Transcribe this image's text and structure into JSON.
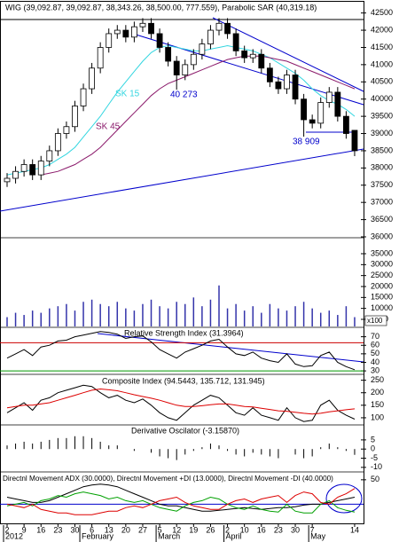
{
  "chart_data": {
    "type": "candlestick",
    "title": "WIG (39,092.87, 39,092.87, 38,343.26, 38,500.00, 777.559), Parabolic SAR (40,319.18)",
    "categories": [
      "2",
      null,
      "9",
      null,
      "16",
      null,
      "23",
      null,
      "30",
      null,
      "6",
      null,
      "13",
      null,
      "20",
      null,
      "27",
      null,
      "5",
      null,
      "12",
      null,
      "19",
      null,
      "26",
      null,
      "2",
      null,
      "10",
      null,
      "16",
      null,
      "23",
      null,
      "30",
      null,
      "7",
      null,
      null,
      null,
      null,
      "14"
    ],
    "months": [
      "2012",
      "February",
      "March",
      "April",
      "May"
    ],
    "open": [
      37600,
      37700,
      37900,
      38100,
      37800,
      38200,
      38500,
      39000,
      39200,
      39800,
      40300,
      40900,
      41500,
      41900,
      42000,
      41800,
      42100,
      42200,
      41900,
      41500,
      41100,
      40700,
      41000,
      41300,
      41600,
      42000,
      42200,
      41900,
      41400,
      41200,
      41300,
      40900,
      40500,
      40300,
      40700,
      40000,
      39400,
      39300,
      39900,
      40200,
      39500,
      39092.87
    ],
    "high": [
      37850,
      38050,
      38250,
      38250,
      38350,
      38650,
      39150,
      39350,
      39950,
      40450,
      41050,
      41650,
      42050,
      42150,
      42150,
      42250,
      42350,
      42350,
      42050,
      41650,
      41250,
      41150,
      41450,
      41750,
      42150,
      42350,
      42350,
      42050,
      41550,
      41450,
      41450,
      41050,
      40650,
      40850,
      40850,
      40150,
      39550,
      40050,
      40350,
      40350,
      39650,
      39092.87
    ],
    "low": [
      37450,
      37550,
      37750,
      37650,
      37650,
      38050,
      38350,
      38850,
      39050,
      39650,
      40150,
      40750,
      41350,
      41750,
      41650,
      41650,
      41950,
      41750,
      41350,
      40950,
      40273,
      40550,
      40850,
      41150,
      41450,
      41850,
      41750,
      41250,
      41050,
      41050,
      40750,
      40350,
      40150,
      40150,
      39850,
      38909,
      39150,
      39150,
      39750,
      39350,
      38850,
      38343.26
    ],
    "close": [
      37700,
      37900,
      38100,
      37800,
      38200,
      38500,
      39000,
      39200,
      39800,
      40300,
      40900,
      41500,
      41900,
      42000,
      41800,
      42100,
      42200,
      41900,
      41500,
      41100,
      40700,
      41000,
      41300,
      41600,
      42000,
      42200,
      41900,
      41400,
      41200,
      41300,
      40900,
      40500,
      40300,
      40700,
      40000,
      39400,
      39300,
      39900,
      40200,
      39500,
      39000,
      38500
    ],
    "ylim": [
      36000,
      42800
    ],
    "yticks": [
      42500,
      42000,
      41500,
      41000,
      40500,
      40000,
      39500,
      39000,
      38500,
      38000,
      37500,
      37000,
      36500,
      36000
    ],
    "overlays": [
      {
        "name": "SK 15",
        "color": "#33d6e0",
        "values": [
          37800,
          37850,
          37900,
          37950,
          38000,
          38100,
          38250,
          38400,
          38600,
          38900,
          39200,
          39500,
          39850,
          40200,
          40500,
          40800,
          41100,
          41350,
          41500,
          41550,
          41500,
          41450,
          41400,
          41400,
          41450,
          41500,
          41550,
          41500,
          41450,
          41400,
          41300,
          41200,
          41050,
          40900,
          40750,
          40550,
          40300,
          40100,
          39950,
          39850,
          39700,
          39500
        ]
      },
      {
        "name": "SK 45",
        "color": "#8b1a6b",
        "values": [
          null,
          null,
          null,
          null,
          37800,
          37850,
          37900,
          38000,
          38100,
          38250,
          38400,
          38600,
          38850,
          39100,
          39350,
          39600,
          39850,
          40100,
          40300,
          40450,
          40550,
          40650,
          40750,
          40850,
          40950,
          41050,
          41150,
          41200,
          41250,
          41250,
          41250,
          41200,
          41150,
          41100,
          41000,
          40900,
          40800,
          40700,
          40600,
          40500,
          40400,
          40300
        ]
      }
    ],
    "annotations": [
      {
        "text": "40 273"
      },
      {
        "text": "38 909"
      }
    ],
    "volume": {
      "unit": "x100",
      "color": "#3333aa",
      "ylim": [
        1750,
        42300
      ],
      "yticks": [
        35000,
        30000,
        25000,
        20000,
        15000,
        10000,
        5000
      ],
      "values": [
        6000,
        8000,
        7000,
        9000,
        8000,
        10000,
        11000,
        12000,
        9000,
        13000,
        14000,
        12000,
        11000,
        13000,
        10000,
        9000,
        12000,
        14000,
        11000,
        10000,
        13000,
        12000,
        15000,
        11000,
        14000,
        20500,
        10000,
        12000,
        9000,
        11000,
        8000,
        12000,
        10000,
        9000,
        11000,
        13000,
        10000,
        8000,
        9000,
        7000,
        11000,
        6000
      ]
    },
    "rsi": {
      "title": "Relative Strength Index (31.3964)",
      "ylim": [
        27,
        80
      ],
      "yticks": [
        70,
        60,
        50,
        40,
        30
      ],
      "levels": [
        {
          "value": 63,
          "color": "#cc0000"
        },
        {
          "value": 30,
          "color": "#009900"
        }
      ],
      "values": [
        45,
        50,
        55,
        48,
        58,
        60,
        65,
        66,
        70,
        72,
        74,
        76,
        75,
        73,
        68,
        70,
        71,
        64,
        55,
        50,
        45,
        52,
        56,
        60,
        65,
        67,
        58,
        50,
        48,
        52,
        45,
        42,
        40,
        50,
        38,
        35,
        36,
        48,
        52,
        40,
        35,
        31.3964
      ]
    },
    "ci": {
      "title": "Composite Index (94.5443, 135.712, 131.945)",
      "ylim": [
        75,
        270
      ],
      "yticks": [
        250,
        200,
        150,
        100
      ],
      "series": [
        {
          "color": "#000000",
          "values": [
            120,
            140,
            160,
            130,
            170,
            180,
            200,
            210,
            220,
            230,
            225,
            200,
            180,
            190,
            170,
            160,
            175,
            150,
            120,
            100,
            90,
            120,
            150,
            170,
            190,
            180,
            150,
            120,
            110,
            140,
            110,
            100,
            90,
            140,
            100,
            85,
            90,
            150,
            170,
            130,
            110,
            94.5443
          ]
        },
        {
          "color": "#dd0000",
          "values": [
            140,
            145,
            150,
            150,
            155,
            160,
            170,
            180,
            190,
            200,
            210,
            215,
            212,
            208,
            200,
            192,
            185,
            178,
            170,
            160,
            150,
            145,
            145,
            148,
            152,
            155,
            155,
            150,
            145,
            143,
            138,
            133,
            128,
            126,
            122,
            118,
            115,
            118,
            124,
            128,
            132,
            135.712
          ]
        }
      ]
    },
    "osc": {
      "title": "Derivative Oscilator (-3.15870)",
      "ylim": [
        -12,
        12.7
      ],
      "yticks": [
        5,
        0,
        -5,
        -10
      ],
      "values": [
        2,
        3,
        4,
        3,
        4,
        5,
        6,
        6,
        7,
        7,
        6,
        4,
        2,
        2,
        0,
        -1,
        0,
        -2,
        -4,
        -5,
        -6,
        -3,
        -1,
        1,
        3,
        2,
        -1,
        -3,
        -4,
        -2,
        -3,
        -4,
        -5,
        0,
        -3,
        -5,
        -4,
        1,
        3,
        1,
        -1,
        -3.1587
      ]
    },
    "dmi": {
      "title": "Directnl Movement ADX (30.0000), Directnl Movement +DI (13.0000), Directnl Movement -DI (40.0000)",
      "ylim": [
        0,
        58
      ],
      "yticks": [
        50
      ],
      "levels": [
        {
          "value": 22,
          "color": "#0000cc"
        }
      ],
      "series": [
        {
          "color": "#000000",
          "values": [
            30,
            28,
            26,
            24,
            24,
            26,
            30,
            34,
            38,
            42,
            44,
            45,
            44,
            42,
            38,
            34,
            30,
            26,
            22,
            20,
            20,
            18,
            16,
            14,
            14,
            15,
            16,
            17,
            18,
            17,
            16,
            17,
            18,
            18,
            19,
            21,
            22,
            22,
            24,
            26,
            28,
            30
          ]
        },
        {
          "color": "#00a000",
          "values": [
            20,
            22,
            24,
            20,
            26,
            28,
            32,
            30,
            34,
            36,
            34,
            32,
            28,
            30,
            26,
            24,
            26,
            22,
            18,
            16,
            14,
            20,
            24,
            26,
            30,
            28,
            22,
            18,
            16,
            20,
            16,
            14,
            13,
            22,
            14,
            12,
            12,
            22,
            26,
            18,
            15,
            13
          ]
        },
        {
          "color": "#dd0000",
          "values": [
            22,
            20,
            18,
            22,
            16,
            14,
            12,
            12,
            10,
            10,
            10,
            12,
            14,
            14,
            18,
            20,
            18,
            22,
            26,
            28,
            30,
            24,
            20,
            18,
            16,
            16,
            22,
            26,
            28,
            24,
            28,
            30,
            32,
            24,
            32,
            36,
            34,
            24,
            22,
            30,
            34,
            40
          ]
        }
      ]
    }
  }
}
